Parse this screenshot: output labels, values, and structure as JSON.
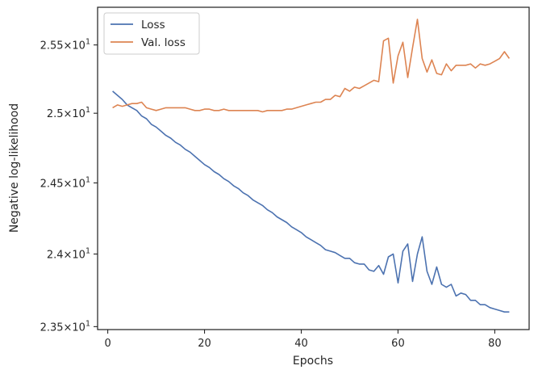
{
  "chart_data": {
    "type": "line",
    "xlabel": "Epochs",
    "ylabel": "Negative log-likelihood",
    "x_ticks": [
      0,
      20,
      40,
      60,
      80
    ],
    "y_scale": "log",
    "y_ticks": [
      {
        "value": 23.5,
        "mantissa": "2.35",
        "exponent": "1"
      },
      {
        "value": 24.0,
        "mantissa": "2.4",
        "exponent": "1"
      },
      {
        "value": 24.5,
        "mantissa": "2.45",
        "exponent": "1"
      },
      {
        "value": 25.0,
        "mantissa": "2.5",
        "exponent": "1"
      },
      {
        "value": 25.5,
        "mantissa": "2.55",
        "exponent": "1"
      }
    ],
    "xlim": [
      -2.1,
      87.1
    ],
    "ylim": [
      23.48,
      25.78
    ],
    "grid": false,
    "legend": "top-left",
    "x": [
      1,
      2,
      3,
      4,
      5,
      6,
      7,
      8,
      9,
      10,
      11,
      12,
      13,
      14,
      15,
      16,
      17,
      18,
      19,
      20,
      21,
      22,
      23,
      24,
      25,
      26,
      27,
      28,
      29,
      30,
      31,
      32,
      33,
      34,
      35,
      36,
      37,
      38,
      39,
      40,
      41,
      42,
      43,
      44,
      45,
      46,
      47,
      48,
      49,
      50,
      51,
      52,
      53,
      54,
      55,
      56,
      57,
      58,
      59,
      60,
      61,
      62,
      63,
      64,
      65,
      66,
      67,
      68,
      69,
      70,
      71,
      72,
      73,
      74,
      75,
      76,
      77,
      78,
      79,
      80,
      81,
      82,
      83
    ],
    "series": [
      {
        "name": "Loss",
        "color": "#4c72b0",
        "values": [
          25.16,
          25.13,
          25.1,
          25.06,
          25.04,
          25.02,
          24.98,
          24.96,
          24.92,
          24.9,
          24.87,
          24.84,
          24.82,
          24.79,
          24.77,
          24.74,
          24.72,
          24.69,
          24.66,
          24.63,
          24.61,
          24.58,
          24.56,
          24.53,
          24.51,
          24.48,
          24.46,
          24.43,
          24.41,
          24.38,
          24.36,
          24.34,
          24.31,
          24.29,
          24.26,
          24.24,
          24.22,
          24.19,
          24.17,
          24.15,
          24.12,
          24.1,
          24.08,
          24.06,
          24.03,
          24.02,
          24.01,
          23.99,
          23.97,
          23.97,
          23.94,
          23.93,
          23.93,
          23.89,
          23.88,
          23.92,
          23.86,
          23.98,
          24.0,
          23.8,
          24.02,
          24.07,
          23.81,
          24.0,
          24.12,
          23.88,
          23.79,
          23.91,
          23.79,
          23.77,
          23.79,
          23.71,
          23.73,
          23.72,
          23.68,
          23.68,
          23.65,
          23.65,
          23.63,
          23.62,
          23.61,
          23.6,
          23.6
        ]
      },
      {
        "name": "Val. loss",
        "color": "#dd8452",
        "values": [
          25.04,
          25.06,
          25.05,
          25.06,
          25.07,
          25.07,
          25.08,
          25.04,
          25.03,
          25.02,
          25.03,
          25.04,
          25.04,
          25.04,
          25.04,
          25.04,
          25.03,
          25.02,
          25.02,
          25.03,
          25.03,
          25.02,
          25.02,
          25.03,
          25.02,
          25.02,
          25.02,
          25.02,
          25.02,
          25.02,
          25.02,
          25.01,
          25.02,
          25.02,
          25.02,
          25.02,
          25.03,
          25.03,
          25.04,
          25.05,
          25.06,
          25.07,
          25.08,
          25.08,
          25.1,
          25.1,
          25.13,
          25.12,
          25.18,
          25.16,
          25.19,
          25.18,
          25.2,
          25.22,
          25.24,
          25.23,
          25.53,
          25.55,
          25.22,
          25.42,
          25.52,
          25.26,
          25.48,
          25.69,
          25.4,
          25.3,
          25.39,
          25.29,
          25.28,
          25.36,
          25.31,
          25.35,
          25.35,
          25.35,
          25.36,
          25.33,
          25.36,
          25.35,
          25.36,
          25.38,
          25.4,
          25.45,
          25.4
        ]
      }
    ]
  }
}
